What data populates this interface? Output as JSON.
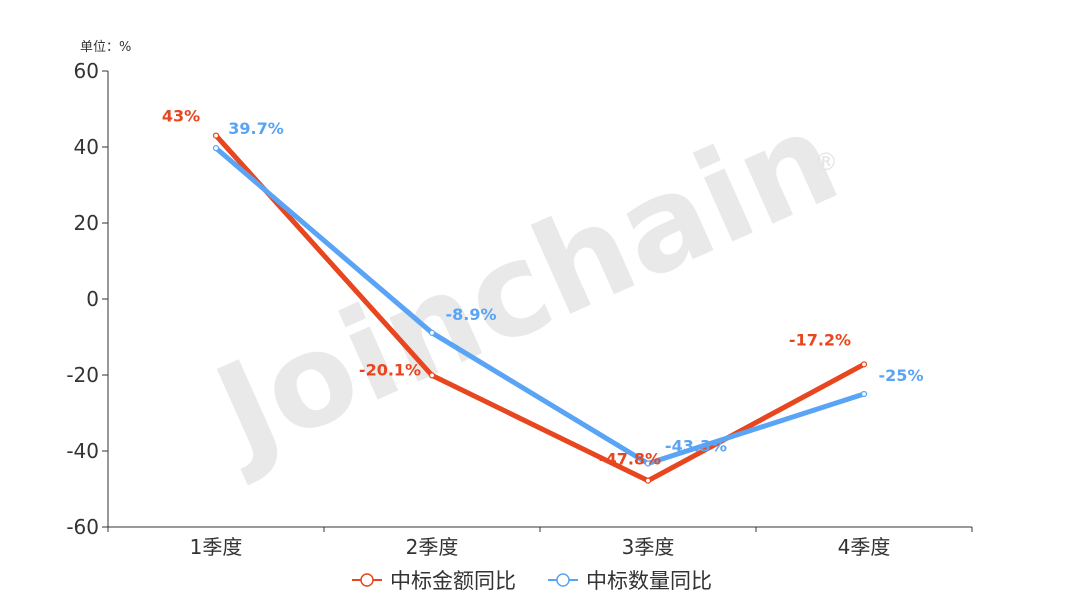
{
  "chart_data": {
    "type": "line",
    "unit_label": "单位：%",
    "categories": [
      "1季度",
      "2季度",
      "3季度",
      "4季度"
    ],
    "ylim": [
      -60,
      60
    ],
    "yticks": [
      "60",
      "40",
      "20",
      "0",
      "-20",
      "-40",
      "-60"
    ],
    "ytick_values": [
      60,
      40,
      20,
      0,
      -20,
      -40,
      -60
    ],
    "grid": false,
    "legend_position": "bottom-center",
    "series": [
      {
        "name": "中标金额同比",
        "color": "#e8461e",
        "values": [
          43,
          -20.1,
          -47.8,
          -17.2
        ],
        "labels": [
          "43%",
          "-20.1%",
          "-47.8%",
          "-17.2%"
        ]
      },
      {
        "name": "中标数量同比",
        "color": "#5aa4f5",
        "values": [
          39.7,
          -8.9,
          -43.3,
          -25
        ],
        "labels": [
          "39.7%",
          "-8.9%",
          "-43.3%",
          "-25%"
        ]
      }
    ],
    "watermark": "Joinchain",
    "watermark_mark": "®"
  }
}
